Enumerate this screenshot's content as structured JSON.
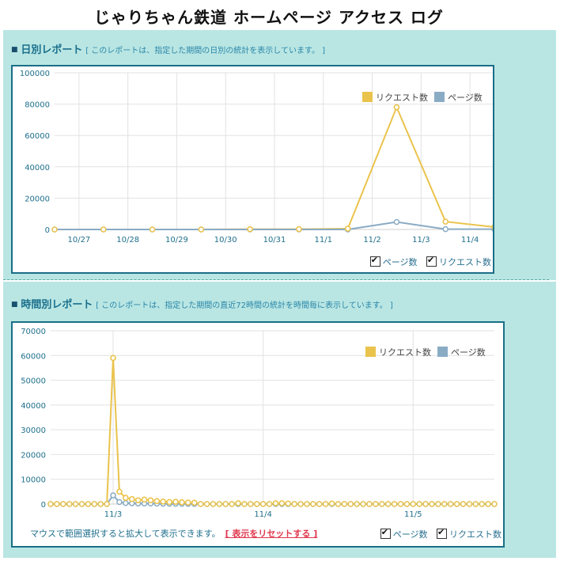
{
  "page": {
    "title": "じゃりちゃん鉄道 ホームページ アクセス ログ"
  },
  "colors": {
    "request": "#eac34c",
    "page": "#8aabc4",
    "frame": "#1b6e87",
    "grid": "#dcdcdc"
  },
  "daily": {
    "marker": "■",
    "title": "日別レポート",
    "description": "[ このレポートは、指定した期間の日別の統計を表示しています。 ]",
    "checkbox_page": "ページ数",
    "checkbox_request": "リクエスト数"
  },
  "hourly": {
    "marker": "■",
    "title": "時間別レポート",
    "description": "[ このレポートは、指定した期間の直近72時間の統計を時間毎に表示しています。 ]",
    "hint": "マウスで範囲選択すると拡大して表示できます。",
    "reset_link": "[ 表示をリセットする ]",
    "checkbox_page": "ページ数",
    "checkbox_request": "リクエスト数"
  },
  "chart_data": [
    {
      "type": "line",
      "title": "日別レポート",
      "legend": [
        "リクエスト数",
        "ページ数"
      ],
      "legend_position": "top-right",
      "ylim": [
        0,
        100000
      ],
      "yticks": [
        0,
        20000,
        40000,
        60000,
        80000,
        100000
      ],
      "x": [
        0,
        1,
        2,
        3,
        4,
        5,
        6,
        7,
        8,
        9
      ],
      "xlim": [
        0,
        9
      ],
      "xticks": [
        {
          "x": 0.5,
          "label": "10/27"
        },
        {
          "x": 1.5,
          "label": "10/28"
        },
        {
          "x": 2.5,
          "label": "10/29"
        },
        {
          "x": 3.5,
          "label": "10/30"
        },
        {
          "x": 4.5,
          "label": "10/31"
        },
        {
          "x": 5.5,
          "label": "11/1"
        },
        {
          "x": 6.5,
          "label": "11/2"
        },
        {
          "x": 7.5,
          "label": "11/3"
        },
        {
          "x": 8.5,
          "label": "11/4"
        }
      ],
      "series": [
        {
          "name": "リクエスト数",
          "color": "#eac34c",
          "values": [
            0,
            0,
            0,
            0,
            200,
            200,
            500,
            78000,
            5000,
            1500
          ]
        },
        {
          "name": "ページ数",
          "color": "#8aabc4",
          "values": [
            0,
            0,
            0,
            0,
            0,
            0,
            0,
            4800,
            200,
            200
          ]
        }
      ]
    },
    {
      "type": "line",
      "title": "時間別レポート",
      "legend": [
        "リクエスト数",
        "ページ数"
      ],
      "legend_position": "top-right",
      "ylim": [
        0,
        70000
      ],
      "yticks": [
        0,
        10000,
        20000,
        30000,
        40000,
        50000,
        60000,
        70000
      ],
      "xlim": [
        0,
        71
      ],
      "xticks": [
        {
          "x": 10,
          "label": "11/3"
        },
        {
          "x": 34,
          "label": "11/4"
        },
        {
          "x": 58,
          "label": "11/5"
        }
      ],
      "series": [
        {
          "name": "リクエスト数",
          "color": "#eac34c",
          "values": [
            0,
            0,
            0,
            0,
            0,
            0,
            0,
            0,
            0,
            0,
            59000,
            5000,
            2500,
            2000,
            1500,
            1800,
            1500,
            1200,
            1000,
            800,
            900,
            700,
            600,
            500,
            0,
            0,
            0,
            0,
            0,
            0,
            300,
            0,
            0,
            0,
            0,
            0,
            300,
            300,
            200,
            0,
            0,
            0,
            0,
            0,
            0,
            200,
            0,
            0,
            0,
            0,
            0,
            0,
            0,
            0,
            0,
            0,
            0,
            0,
            0,
            0,
            0,
            0,
            0,
            0,
            0,
            0,
            0,
            0,
            0,
            0,
            0,
            0
          ]
        },
        {
          "name": "ページ数",
          "color": "#8aabc4",
          "values": [
            0,
            0,
            0,
            0,
            0,
            0,
            0,
            0,
            0,
            0,
            3500,
            800,
            400,
            300,
            200,
            200,
            200,
            150,
            100,
            100,
            100,
            80,
            60,
            50,
            0,
            0,
            0,
            0,
            0,
            0,
            0,
            0,
            0,
            0,
            0,
            0,
            0,
            0,
            0,
            0,
            0,
            0,
            0,
            0,
            0,
            0,
            0,
            0,
            0,
            0,
            0,
            0,
            0,
            0,
            0,
            0,
            0,
            0,
            0,
            0,
            0,
            0,
            0,
            0,
            0,
            0,
            0,
            0,
            0,
            0,
            0,
            0
          ]
        }
      ]
    }
  ]
}
